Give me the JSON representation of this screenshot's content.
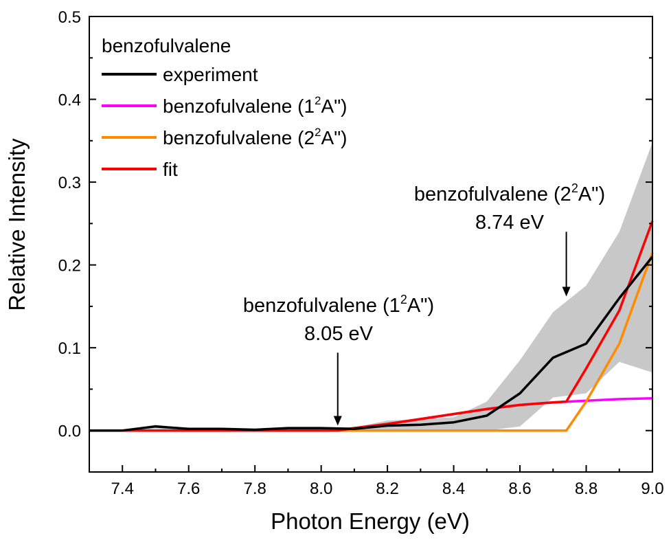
{
  "chart_data": {
    "type": "line",
    "xlabel": "Photon Energy (eV)",
    "ylabel": "Relative Intensity",
    "xlim": [
      7.3,
      9.0
    ],
    "ylim": [
      -0.05,
      0.5
    ],
    "xticks": [
      "7.4",
      "7.6",
      "7.8",
      "8.0",
      "8.2",
      "8.4",
      "8.6",
      "8.8",
      "9.0"
    ],
    "yticks": [
      "0.0",
      "0.1",
      "0.2",
      "0.3",
      "0.4",
      "0.5"
    ],
    "legend": {
      "title": "benzofulvalene",
      "placement": "top-left",
      "entries": [
        {
          "label": "experiment",
          "sup": "",
          "tail": ""
        },
        {
          "label": "benzofulvalene (1",
          "sup": "2",
          "tail": "A\")"
        },
        {
          "label": "benzofulvalene (2",
          "sup": "2",
          "tail": "A\")"
        },
        {
          "label": "fit",
          "sup": "",
          "tail": ""
        }
      ]
    },
    "colors": {
      "experiment": "#000000",
      "state1": "#ff00ff",
      "state2": "#ff8c00",
      "fit": "#ff0000",
      "uncertainty": "#c8c8c8"
    },
    "uncertainty_band": {
      "x": [
        7.3,
        7.4,
        7.5,
        7.6,
        7.7,
        7.8,
        7.9,
        8.0,
        8.1,
        8.2,
        8.3,
        8.4,
        8.5,
        8.6,
        8.7,
        8.8,
        8.9,
        9.0
      ],
      "upper": [
        0.001,
        0.001,
        0.007,
        0.003,
        0.003,
        0.002,
        0.004,
        0.004,
        0.004,
        0.012,
        0.014,
        0.016,
        0.035,
        0.085,
        0.143,
        0.175,
        0.24,
        0.348
      ],
      "lower": [
        -0.001,
        -0.001,
        0.002,
        0.0,
        0.0,
        0.0,
        0.001,
        0.001,
        0.0,
        0.0,
        0.0,
        0.0,
        0.0,
        0.005,
        0.04,
        0.045,
        0.083,
        0.07
      ]
    },
    "series": [
      {
        "name": "experiment",
        "color_key": "experiment",
        "x": [
          7.3,
          7.4,
          7.5,
          7.6,
          7.7,
          7.8,
          7.9,
          8.0,
          8.1,
          8.2,
          8.3,
          8.4,
          8.5,
          8.6,
          8.7,
          8.8,
          8.9,
          9.0
        ],
        "y": [
          0.0,
          0.0,
          0.005,
          0.002,
          0.002,
          0.001,
          0.003,
          0.003,
          0.002,
          0.006,
          0.007,
          0.01,
          0.018,
          0.045,
          0.088,
          0.105,
          0.16,
          0.21
        ]
      },
      {
        "name": "benzofulvalene (1²A\")",
        "color_key": "state1",
        "x": [
          7.3,
          8.05,
          8.1,
          8.2,
          8.3,
          8.4,
          8.5,
          8.6,
          8.7,
          8.8,
          8.9,
          9.0
        ],
        "y": [
          0.0,
          0.0,
          0.003,
          0.008,
          0.014,
          0.02,
          0.026,
          0.031,
          0.034,
          0.036,
          0.038,
          0.039
        ]
      },
      {
        "name": "benzofulvalene (2²A\")",
        "color_key": "state2",
        "x": [
          7.3,
          8.74,
          8.8,
          8.9,
          9.0
        ],
        "y": [
          0.0,
          0.0,
          0.035,
          0.105,
          0.215
        ]
      },
      {
        "name": "fit",
        "color_key": "fit",
        "x": [
          7.3,
          8.05,
          8.1,
          8.2,
          8.3,
          8.4,
          8.5,
          8.6,
          8.7,
          8.74,
          8.8,
          8.9,
          9.0
        ],
        "y": [
          0.0,
          0.0,
          0.003,
          0.008,
          0.014,
          0.02,
          0.026,
          0.031,
          0.034,
          0.035,
          0.075,
          0.145,
          0.253
        ]
      }
    ],
    "annotations": [
      {
        "line1": "benzofulvalene (1",
        "sup": "2",
        "tail": "A\")",
        "line2": "8.05 eV",
        "x": 8.05,
        "arrow_from_y": 0.094,
        "arrow_to_y": 0.006
      },
      {
        "line1": "benzofulvalene (2",
        "sup": "2",
        "tail": "A\")",
        "line2": "8.74 eV",
        "x": 8.74,
        "arrow_from_y": 0.24,
        "arrow_to_y": 0.162
      }
    ]
  }
}
